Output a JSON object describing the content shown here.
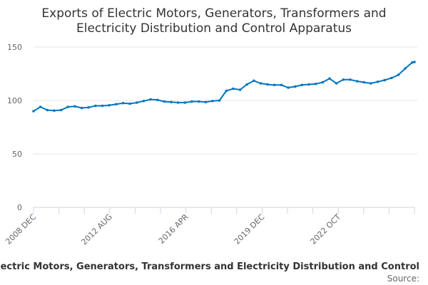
{
  "chart_data": {
    "type": "line",
    "title": [
      "Exports of Electric Motors, Generators, Transformers and",
      "Electricity Distribution and Control Apparatus"
    ],
    "xlabel": "of Electric Motors, Generators, Transformers and Electricity Distribution and Control",
    "source_label": "Source:",
    "ylabel": "",
    "ylim": [
      0,
      150
    ],
    "yticks": [
      0,
      50,
      100,
      150
    ],
    "xtick_labels": [
      "2008 DEC",
      "2012 AUG",
      "2016 APR",
      "2019 DEC",
      "2022 OCT"
    ],
    "xrange": [
      "2008-12",
      "2022-10"
    ],
    "grid": true,
    "legend": "none",
    "color": "#0077c0",
    "series": [
      {
        "x": [
          "2008-12",
          "2009-03",
          "2009-06",
          "2009-09",
          "2009-12",
          "2010-03",
          "2010-06",
          "2010-09",
          "2010-12",
          "2011-03",
          "2011-06",
          "2011-09",
          "2011-12",
          "2012-03",
          "2012-06",
          "2012-09",
          "2012-12",
          "2013-03",
          "2013-06",
          "2013-09",
          "2013-12",
          "2014-03",
          "2014-06",
          "2014-09",
          "2014-12",
          "2015-03",
          "2015-06",
          "2015-09",
          "2015-12",
          "2016-03",
          "2016-06",
          "2016-09",
          "2016-12",
          "2017-03",
          "2017-06",
          "2017-09",
          "2017-12",
          "2018-03",
          "2018-06",
          "2018-09",
          "2018-12",
          "2019-03",
          "2019-06",
          "2019-09",
          "2019-12",
          "2020-03",
          "2020-06",
          "2020-09",
          "2020-12",
          "2021-03",
          "2021-06",
          "2021-09",
          "2021-12",
          "2022-03",
          "2022-06",
          "2022-09",
          "2022-10"
        ],
        "values": [
          90,
          94,
          91,
          90.5,
          91,
          94,
          94.5,
          93,
          93.5,
          95,
          95,
          95.5,
          96.5,
          97.5,
          97,
          98,
          99.5,
          101,
          100.5,
          99,
          98.5,
          98,
          98,
          99,
          99,
          98.5,
          99.5,
          100,
          109,
          111,
          110,
          115,
          118.5,
          116,
          115,
          114.5,
          114.5,
          112,
          113,
          114.5,
          115,
          115.5,
          117,
          120.5,
          116,
          119.5,
          119.5,
          118,
          117,
          116,
          117.5,
          119,
          121,
          124,
          130,
          135.5,
          136
        ]
      }
    ]
  }
}
